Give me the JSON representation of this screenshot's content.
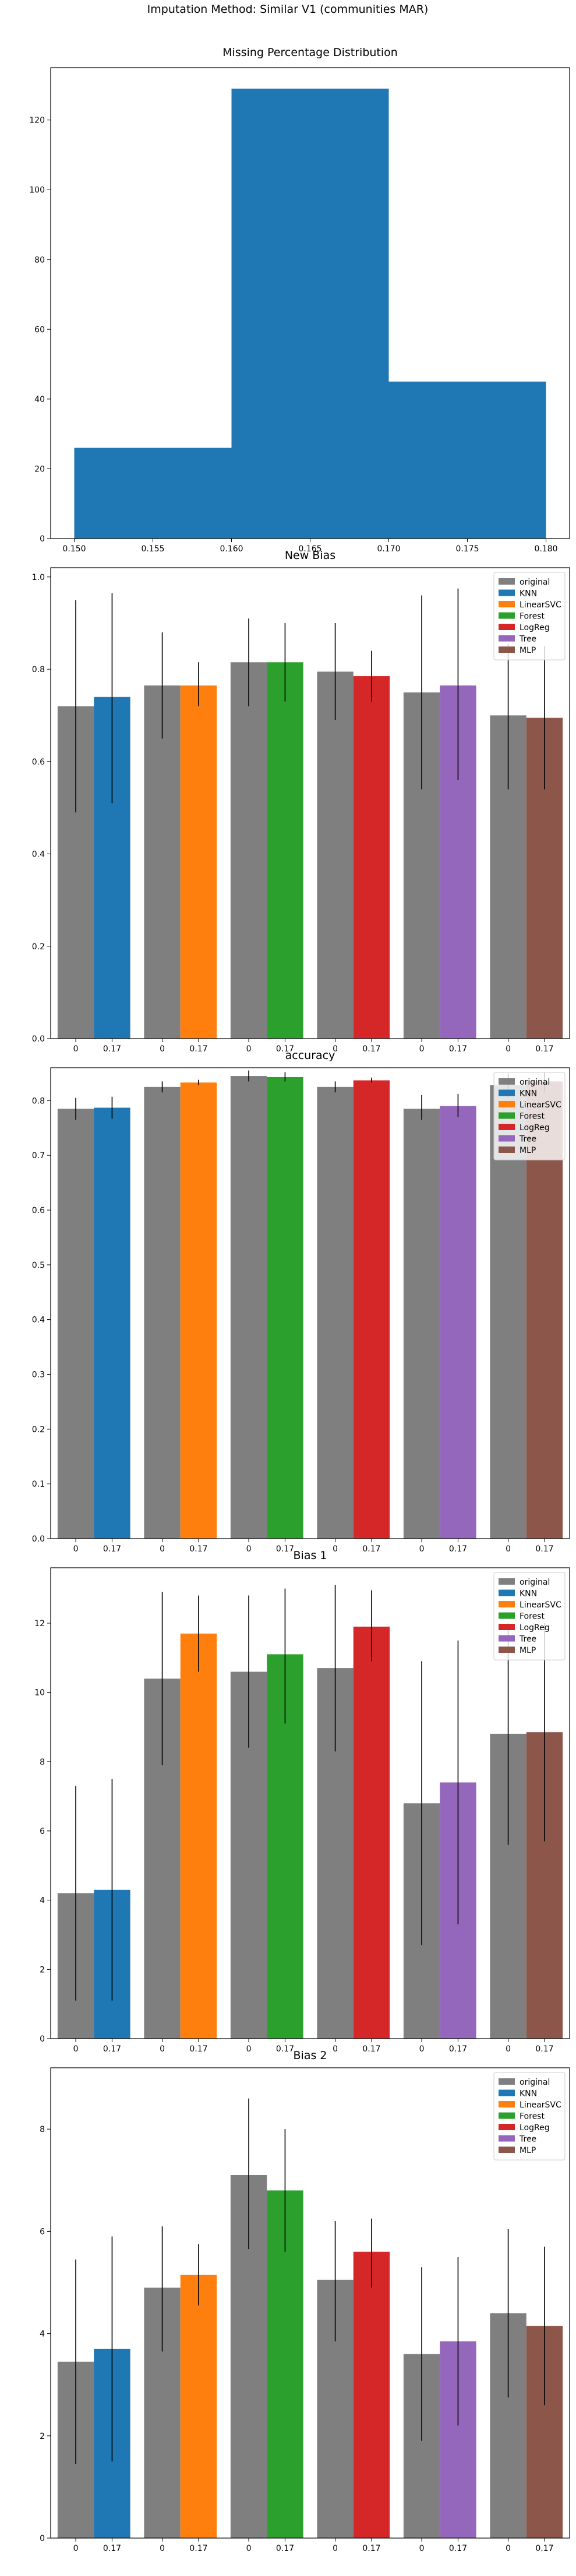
{
  "suptitle": "Imputation Method: Similar V1 (communities MAR)",
  "colors": {
    "original": "#7f7f7f",
    "KNN": "#1f77b4",
    "LinearSVC": "#ff7f0e",
    "Forest": "#2ca02c",
    "LogReg": "#d62728",
    "Tree": "#9467bd",
    "MLP": "#8c564b",
    "hist": "#1f77b4"
  },
  "legend": [
    "original",
    "KNN",
    "LinearSVC",
    "Forest",
    "LogReg",
    "Tree",
    "MLP"
  ],
  "chart_data": [
    {
      "type": "histogram",
      "title": "Missing Percentage Distribution",
      "bins": [
        {
          "start": 0.15,
          "end": 0.16,
          "count": 26
        },
        {
          "start": 0.16,
          "end": 0.17,
          "count": 129
        },
        {
          "start": 0.17,
          "end": 0.18,
          "count": 45
        }
      ],
      "xlim": [
        0.1485,
        0.1815
      ],
      "ylim": [
        0,
        135
      ],
      "xticks": [
        0.15,
        0.155,
        0.16,
        0.165,
        0.17,
        0.175,
        0.18
      ],
      "xtick_labels": [
        "0.150",
        "0.155",
        "0.160",
        "0.165",
        "0.170",
        "0.175",
        "0.180"
      ],
      "yticks": [
        0,
        20,
        40,
        60,
        80,
        100,
        120
      ],
      "ytick_labels": [
        "0",
        "20",
        "40",
        "60",
        "80",
        "100",
        "120"
      ]
    },
    {
      "type": "bar",
      "title": "New Bias",
      "ylim": [
        0,
        1.02
      ],
      "yticks": [
        0,
        0.2,
        0.4,
        0.6,
        0.8,
        1.0
      ],
      "ytick_labels": [
        "0.0",
        "0.2",
        "0.4",
        "0.6",
        "0.8",
        "1.0"
      ],
      "xtick_labels": [
        "0",
        "0.17"
      ],
      "groups": [
        {
          "method": "KNN",
          "original": {
            "value": 0.72,
            "err_low": 0.49,
            "err_high": 0.95
          },
          "imputed": {
            "value": 0.74,
            "err_low": 0.51,
            "err_high": 0.965
          }
        },
        {
          "method": "LinearSVC",
          "original": {
            "value": 0.765,
            "err_low": 0.65,
            "err_high": 0.88
          },
          "imputed": {
            "value": 0.765,
            "err_low": 0.72,
            "err_high": 0.815
          }
        },
        {
          "method": "Forest",
          "original": {
            "value": 0.815,
            "err_low": 0.72,
            "err_high": 0.91
          },
          "imputed": {
            "value": 0.815,
            "err_low": 0.73,
            "err_high": 0.9
          }
        },
        {
          "method": "LogReg",
          "original": {
            "value": 0.795,
            "err_low": 0.69,
            "err_high": 0.9
          },
          "imputed": {
            "value": 0.785,
            "err_low": 0.73,
            "err_high": 0.84
          }
        },
        {
          "method": "Tree",
          "original": {
            "value": 0.75,
            "err_low": 0.54,
            "err_high": 0.96
          },
          "imputed": {
            "value": 0.765,
            "err_low": 0.56,
            "err_high": 0.975
          }
        },
        {
          "method": "MLP",
          "original": {
            "value": 0.7,
            "err_low": 0.54,
            "err_high": 0.855
          },
          "imputed": {
            "value": 0.695,
            "err_low": 0.54,
            "err_high": 0.85
          }
        }
      ]
    },
    {
      "type": "bar",
      "title": "accuracy",
      "ylim": [
        0,
        0.86
      ],
      "yticks": [
        0,
        0.1,
        0.2,
        0.3,
        0.4,
        0.5,
        0.6,
        0.7,
        0.8
      ],
      "ytick_labels": [
        "0.0",
        "0.1",
        "0.2",
        "0.3",
        "0.4",
        "0.5",
        "0.6",
        "0.7",
        "0.8"
      ],
      "xtick_labels": [
        "0",
        "0.17"
      ],
      "groups": [
        {
          "method": "KNN",
          "original": {
            "value": 0.785,
            "err_low": 0.765,
            "err_high": 0.805
          },
          "imputed": {
            "value": 0.787,
            "err_low": 0.767,
            "err_high": 0.807
          }
        },
        {
          "method": "LinearSVC",
          "original": {
            "value": 0.825,
            "err_low": 0.815,
            "err_high": 0.835
          },
          "imputed": {
            "value": 0.833,
            "err_low": 0.828,
            "err_high": 0.838
          }
        },
        {
          "method": "Forest",
          "original": {
            "value": 0.845,
            "err_low": 0.835,
            "err_high": 0.855
          },
          "imputed": {
            "value": 0.843,
            "err_low": 0.835,
            "err_high": 0.852
          }
        },
        {
          "method": "LogReg",
          "original": {
            "value": 0.825,
            "err_low": 0.815,
            "err_high": 0.835
          },
          "imputed": {
            "value": 0.837,
            "err_low": 0.833,
            "err_high": 0.842
          }
        },
        {
          "method": "Tree",
          "original": {
            "value": 0.785,
            "err_low": 0.765,
            "err_high": 0.81
          },
          "imputed": {
            "value": 0.79,
            "err_low": 0.77,
            "err_high": 0.812
          }
        },
        {
          "method": "MLP",
          "original": {
            "value": 0.828,
            "err_low": 0.805,
            "err_high": 0.85
          },
          "imputed": {
            "value": 0.835,
            "err_low": 0.815,
            "err_high": 0.852
          }
        }
      ]
    },
    {
      "type": "bar",
      "title": "Bias 1",
      "ylim": [
        0,
        13.6
      ],
      "yticks": [
        0,
        2,
        4,
        6,
        8,
        10,
        12
      ],
      "ytick_labels": [
        "0",
        "2",
        "4",
        "6",
        "8",
        "10",
        "12"
      ],
      "xtick_labels": [
        "0",
        "0.17"
      ],
      "groups": [
        {
          "method": "KNN",
          "original": {
            "value": 4.2,
            "err_low": 1.1,
            "err_high": 7.3
          },
          "imputed": {
            "value": 4.3,
            "err_low": 1.1,
            "err_high": 7.5
          }
        },
        {
          "method": "LinearSVC",
          "original": {
            "value": 10.4,
            "err_low": 7.9,
            "err_high": 12.9
          },
          "imputed": {
            "value": 11.7,
            "err_low": 10.6,
            "err_high": 12.8
          }
        },
        {
          "method": "Forest",
          "original": {
            "value": 10.6,
            "err_low": 8.4,
            "err_high": 12.8
          },
          "imputed": {
            "value": 11.1,
            "err_low": 9.1,
            "err_high": 13.0
          }
        },
        {
          "method": "LogReg",
          "original": {
            "value": 10.7,
            "err_low": 8.3,
            "err_high": 13.1
          },
          "imputed": {
            "value": 11.9,
            "err_low": 10.9,
            "err_high": 12.95
          }
        },
        {
          "method": "Tree",
          "original": {
            "value": 6.8,
            "err_low": 2.7,
            "err_high": 10.9
          },
          "imputed": {
            "value": 7.4,
            "err_low": 3.3,
            "err_high": 11.5
          }
        },
        {
          "method": "MLP",
          "original": {
            "value": 8.8,
            "err_low": 5.6,
            "err_high": 12.0
          },
          "imputed": {
            "value": 8.85,
            "err_low": 5.7,
            "err_high": 12.0
          }
        }
      ]
    },
    {
      "type": "bar",
      "title": "Bias 2",
      "ylim": [
        0,
        9.2
      ],
      "yticks": [
        0,
        2,
        4,
        6,
        8
      ],
      "ytick_labels": [
        "0",
        "2",
        "4",
        "6",
        "8"
      ],
      "xtick_labels": [
        "0",
        "0.17"
      ],
      "groups": [
        {
          "method": "KNN",
          "original": {
            "value": 3.45,
            "err_low": 1.45,
            "err_high": 5.45
          },
          "imputed": {
            "value": 3.7,
            "err_low": 1.5,
            "err_high": 5.9
          }
        },
        {
          "method": "LinearSVC",
          "original": {
            "value": 4.9,
            "err_low": 3.65,
            "err_high": 6.1
          },
          "imputed": {
            "value": 5.15,
            "err_low": 4.55,
            "err_high": 5.75
          }
        },
        {
          "method": "Forest",
          "original": {
            "value": 7.1,
            "err_low": 5.65,
            "err_high": 8.6
          },
          "imputed": {
            "value": 6.8,
            "err_low": 5.6,
            "err_high": 8.0
          }
        },
        {
          "method": "LogReg",
          "original": {
            "value": 5.05,
            "err_low": 3.85,
            "err_high": 6.2
          },
          "imputed": {
            "value": 5.6,
            "err_low": 4.9,
            "err_high": 6.25
          }
        },
        {
          "method": "Tree",
          "original": {
            "value": 3.6,
            "err_low": 1.9,
            "err_high": 5.3
          },
          "imputed": {
            "value": 3.85,
            "err_low": 2.2,
            "err_high": 5.5
          }
        },
        {
          "method": "MLP",
          "original": {
            "value": 4.4,
            "err_low": 2.75,
            "err_high": 6.05
          },
          "imputed": {
            "value": 4.15,
            "err_low": 2.6,
            "err_high": 5.7
          }
        }
      ]
    }
  ]
}
